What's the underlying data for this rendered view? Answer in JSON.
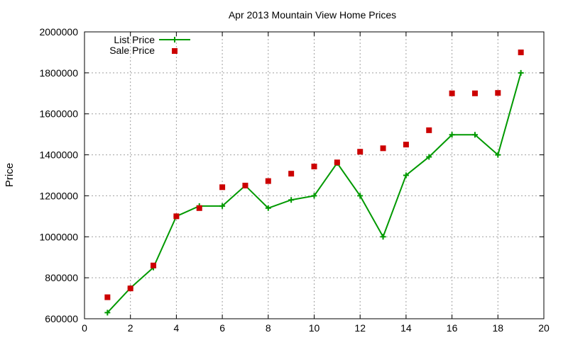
{
  "chart_data": {
    "type": "line",
    "title": "Apr 2013 Mountain View Home Prices",
    "xlabel": "",
    "ylabel": "Price",
    "xlim": [
      0,
      20
    ],
    "ylim": [
      600000,
      2000000
    ],
    "xticks": [
      0,
      2,
      4,
      6,
      8,
      10,
      12,
      14,
      16,
      18,
      20
    ],
    "yticks": [
      600000,
      800000,
      1000000,
      1200000,
      1400000,
      1600000,
      1800000,
      2000000
    ],
    "grid": true,
    "legend_position": "top-left",
    "series": [
      {
        "name": "List Price",
        "style": "line-with-plus-markers",
        "color": "#009900",
        "x": [
          1,
          2,
          3,
          4,
          5,
          6,
          7,
          8,
          9,
          10,
          11,
          12,
          13,
          14,
          15,
          16,
          17,
          18,
          19
        ],
        "values": [
          630000,
          750000,
          850000,
          1100000,
          1150000,
          1150000,
          1250000,
          1140000,
          1180000,
          1200000,
          1360000,
          1200000,
          1000000,
          1300000,
          1390000,
          1498000,
          1498000,
          1400000,
          1800000
        ]
      },
      {
        "name": "Sale Price",
        "style": "square-markers",
        "color": "#cc0000",
        "x": [
          1,
          2,
          3,
          4,
          5,
          6,
          7,
          8,
          9,
          10,
          11,
          12,
          13,
          14,
          15,
          16,
          17,
          18,
          19
        ],
        "values": [
          705000,
          748000,
          860000,
          1100000,
          1140000,
          1242000,
          1250000,
          1272000,
          1308000,
          1343000,
          1363000,
          1415000,
          1432000,
          1450000,
          1520000,
          1700000,
          1700000,
          1702000,
          1900000
        ]
      }
    ]
  }
}
